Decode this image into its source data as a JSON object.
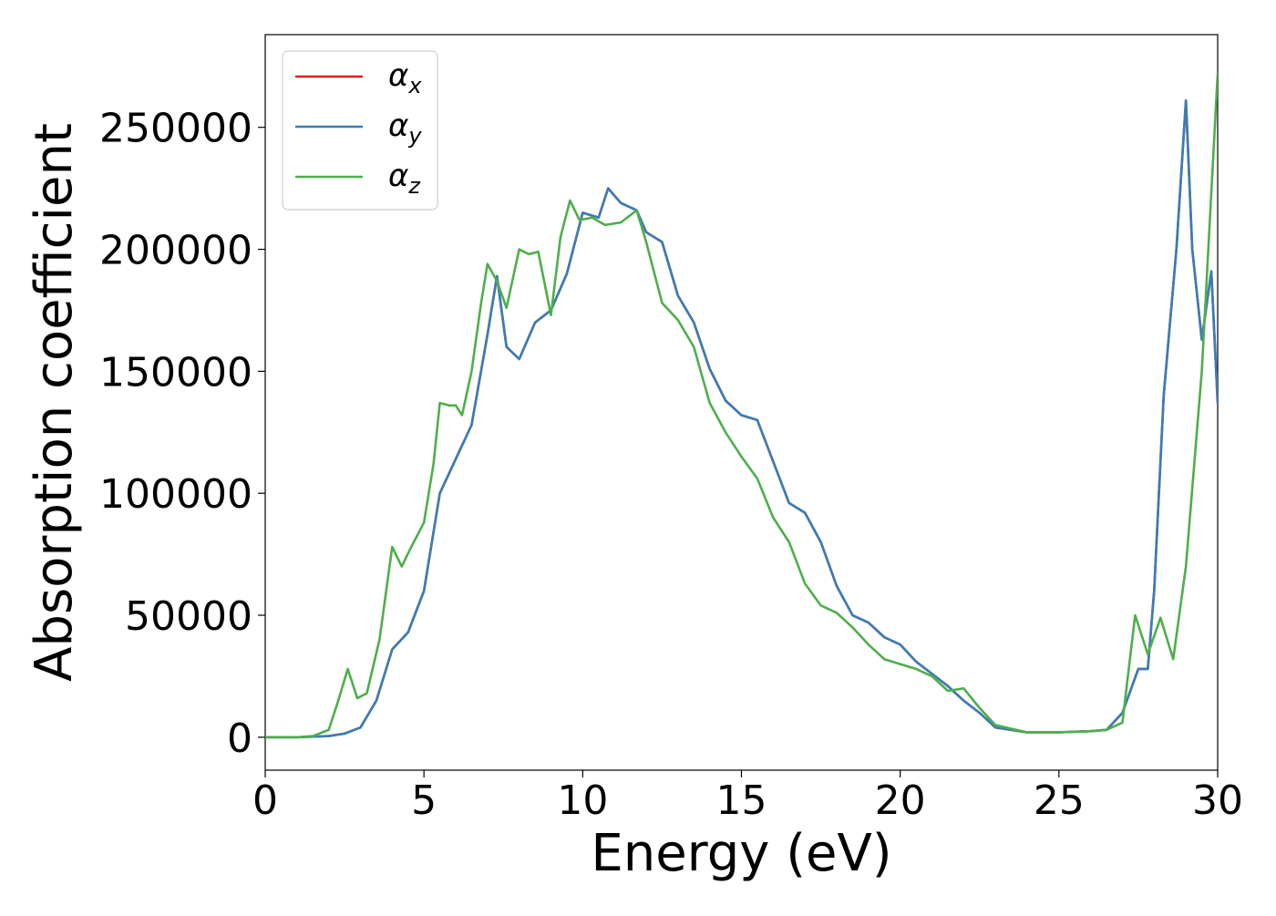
{
  "chart_data": {
    "type": "line",
    "title": "",
    "xlabel": "Energy (eV)",
    "ylabel": "Absorption coefficient",
    "xlim": [
      0,
      30
    ],
    "ylim": [
      -13500,
      288000
    ],
    "xticks": [
      0,
      5,
      10,
      15,
      20,
      25,
      30
    ],
    "yticks": [
      0,
      50000,
      100000,
      150000,
      200000,
      250000
    ],
    "xtick_labels": [
      "0",
      "5",
      "10",
      "15",
      "20",
      "25",
      "30"
    ],
    "ytick_labels": [
      "0",
      "50000",
      "100000",
      "150000",
      "200000",
      "250000"
    ],
    "grid": false,
    "legend_position": "top-left",
    "series": [
      {
        "name": "α_x",
        "legend_base": "α",
        "legend_sub": "x",
        "color": "#e41a1c",
        "x": [
          0,
          1,
          2,
          2.5,
          3,
          3.5,
          4,
          4.5,
          5,
          5.5,
          6,
          6.5,
          7,
          7.3,
          7.6,
          8,
          8.5,
          9,
          9.5,
          10,
          10.5,
          10.8,
          11.2,
          11.7,
          12,
          12.5,
          13,
          13.5,
          14,
          14.5,
          15,
          15.5,
          16,
          16.5,
          17,
          17.5,
          18,
          18.5,
          19,
          19.5,
          20,
          20.5,
          21,
          21.5,
          22,
          22.5,
          23,
          24,
          25,
          26,
          26.5,
          27,
          27.5,
          27.8,
          28,
          28.3,
          28.7,
          29,
          29.2,
          29.5,
          29.8,
          30
        ],
        "y": [
          0,
          0,
          500,
          1500,
          4000,
          15000,
          36000,
          43000,
          60000,
          100000,
          114000,
          128000,
          165000,
          189000,
          160000,
          155000,
          170000,
          175000,
          190000,
          215000,
          213000,
          225000,
          219000,
          216000,
          207000,
          203000,
          181000,
          170000,
          151000,
          138000,
          132000,
          130000,
          113000,
          96000,
          92000,
          80000,
          62000,
          50000,
          47000,
          41000,
          38000,
          31000,
          26000,
          21000,
          15000,
          10000,
          4000,
          2000,
          2000,
          2500,
          3000,
          10000,
          28000,
          28000,
          60000,
          140000,
          200000,
          261000,
          200000,
          163000,
          191000,
          137000
        ]
      },
      {
        "name": "α_y",
        "legend_base": "α",
        "legend_sub": "y",
        "color": "#377eb8",
        "x": [
          0,
          1,
          2,
          2.5,
          3,
          3.5,
          4,
          4.5,
          5,
          5.5,
          6,
          6.5,
          7,
          7.3,
          7.6,
          8,
          8.5,
          9,
          9.5,
          10,
          10.5,
          10.8,
          11.2,
          11.7,
          12,
          12.5,
          13,
          13.5,
          14,
          14.5,
          15,
          15.5,
          16,
          16.5,
          17,
          17.5,
          18,
          18.5,
          19,
          19.5,
          20,
          20.5,
          21,
          21.5,
          22,
          22.5,
          23,
          24,
          25,
          26,
          26.5,
          27,
          27.5,
          27.8,
          28,
          28.3,
          28.7,
          29,
          29.2,
          29.5,
          29.8,
          30
        ],
        "y": [
          0,
          0,
          500,
          1500,
          4000,
          15000,
          36000,
          43000,
          60000,
          100000,
          114000,
          128000,
          165000,
          189000,
          160000,
          155000,
          170000,
          175000,
          190000,
          215000,
          213000,
          225000,
          219000,
          216000,
          207000,
          203000,
          181000,
          170000,
          151000,
          138000,
          132000,
          130000,
          113000,
          96000,
          92000,
          80000,
          62000,
          50000,
          47000,
          41000,
          38000,
          31000,
          26000,
          21000,
          15000,
          10000,
          4000,
          2000,
          2000,
          2500,
          3000,
          10000,
          28000,
          28000,
          60000,
          140000,
          200000,
          261000,
          200000,
          163000,
          191000,
          137000
        ]
      },
      {
        "name": "α_z",
        "legend_base": "α",
        "legend_sub": "z",
        "color": "#4daf4a",
        "x": [
          0,
          1,
          1.5,
          2,
          2.3,
          2.6,
          2.9,
          3.2,
          3.6,
          4,
          4.3,
          4.6,
          5,
          5.3,
          5.5,
          5.8,
          6,
          6.2,
          6.5,
          6.8,
          7,
          7.3,
          7.6,
          8,
          8.3,
          8.6,
          9,
          9.3,
          9.6,
          9.9,
          10.3,
          10.7,
          11.2,
          11.7,
          12,
          12.5,
          13,
          13.5,
          14,
          14.5,
          15,
          15.5,
          16,
          16.5,
          17,
          17.5,
          18,
          18.5,
          19,
          19.5,
          20,
          20.5,
          21,
          21.5,
          22,
          22.5,
          23,
          24,
          25,
          26,
          26.5,
          27,
          27.4,
          27.8,
          28.2,
          28.6,
          29,
          29.5,
          30
        ],
        "y": [
          0,
          0,
          500,
          3000,
          15000,
          28000,
          16000,
          18000,
          40000,
          78000,
          70000,
          78000,
          88000,
          112000,
          137000,
          136000,
          136000,
          132000,
          150000,
          178000,
          194000,
          187000,
          176000,
          200000,
          198000,
          199000,
          173000,
          205000,
          220000,
          212000,
          213000,
          210000,
          211000,
          216000,
          203000,
          178000,
          171000,
          160000,
          137000,
          125000,
          115000,
          106000,
          90000,
          80000,
          63000,
          54000,
          51000,
          45000,
          38000,
          32000,
          30000,
          28000,
          25000,
          19000,
          20000,
          12000,
          5000,
          2000,
          2000,
          2500,
          3000,
          6000,
          50000,
          34000,
          49000,
          32000,
          70000,
          150000,
          272000
        ]
      }
    ]
  }
}
